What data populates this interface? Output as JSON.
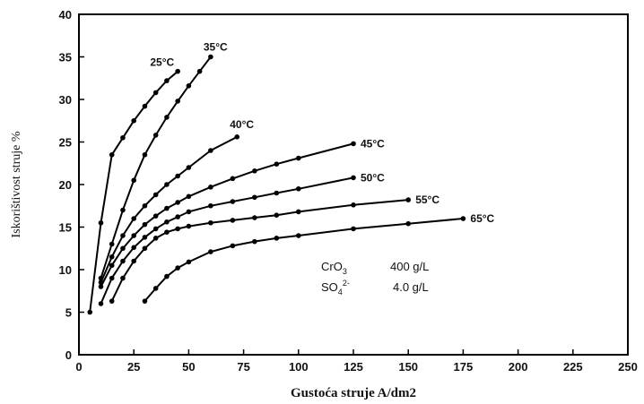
{
  "chart_data": {
    "type": "line",
    "title": "",
    "xlabel": "Gustoća struje A/dm2",
    "ylabel": "Iskorištivost struje %",
    "xlim": [
      0,
      250
    ],
    "ylim": [
      0,
      40
    ],
    "xticks": [
      0,
      25,
      50,
      75,
      100,
      125,
      150,
      175,
      200,
      225,
      250
    ],
    "yticks": [
      0,
      5,
      10,
      15,
      20,
      25,
      30,
      35,
      40
    ],
    "grid": false,
    "legend": "inline labels at line ends",
    "series": [
      {
        "name": "25°C",
        "x": [
          5,
          10,
          15,
          20,
          25,
          30,
          35,
          40,
          45
        ],
        "y": [
          5,
          15.5,
          23.5,
          25.5,
          27.5,
          29.2,
          30.8,
          32.2,
          33.3
        ]
      },
      {
        "name": "35°C",
        "x": [
          10,
          15,
          20,
          25,
          30,
          35,
          40,
          45,
          50,
          55,
          60
        ],
        "y": [
          9,
          13,
          17,
          20.5,
          23.5,
          25.8,
          27.9,
          29.8,
          31.6,
          33.3,
          35
        ]
      },
      {
        "name": "40°C",
        "x": [
          10,
          15,
          20,
          25,
          30,
          35,
          40,
          45,
          50,
          60,
          72
        ],
        "y": [
          8.5,
          11.5,
          14,
          16,
          17.5,
          18.8,
          20,
          21,
          22,
          24,
          25.6
        ]
      },
      {
        "name": "45°C",
        "x": [
          10,
          15,
          20,
          25,
          30,
          35,
          40,
          45,
          50,
          60,
          70,
          80,
          90,
          100,
          125
        ],
        "y": [
          8,
          10.5,
          12.5,
          14,
          15.3,
          16.3,
          17.2,
          17.9,
          18.6,
          19.7,
          20.7,
          21.6,
          22.4,
          23.1,
          24.8
        ]
      },
      {
        "name": "50°C",
        "x": [
          10,
          15,
          20,
          25,
          30,
          35,
          40,
          45,
          50,
          60,
          70,
          80,
          90,
          100,
          125
        ],
        "y": [
          6,
          9,
          11,
          12.6,
          13.8,
          14.8,
          15.6,
          16.2,
          16.8,
          17.5,
          18,
          18.5,
          19,
          19.5,
          20.8
        ]
      },
      {
        "name": "55°C",
        "x": [
          15,
          20,
          25,
          30,
          35,
          40,
          45,
          50,
          60,
          70,
          80,
          90,
          100,
          125,
          150
        ],
        "y": [
          6.3,
          9,
          11,
          12.5,
          13.7,
          14.4,
          14.8,
          15.1,
          15.5,
          15.8,
          16.1,
          16.4,
          16.8,
          17.6,
          18.2
        ]
      },
      {
        "name": "65°C",
        "x": [
          30,
          35,
          40,
          45,
          50,
          60,
          70,
          80,
          90,
          100,
          125,
          150,
          175
        ],
        "y": [
          6.3,
          7.8,
          9.2,
          10.2,
          10.9,
          12.1,
          12.8,
          13.3,
          13.7,
          14,
          14.8,
          15.4,
          16
        ]
      }
    ],
    "annotations": [
      {
        "formula": "CrO",
        "sub": "3",
        "sup": "",
        "value": "400 g/L"
      },
      {
        "formula": "SO",
        "sub": "4",
        "sup": "2-",
        "value": "4.0 g/L"
      }
    ]
  }
}
